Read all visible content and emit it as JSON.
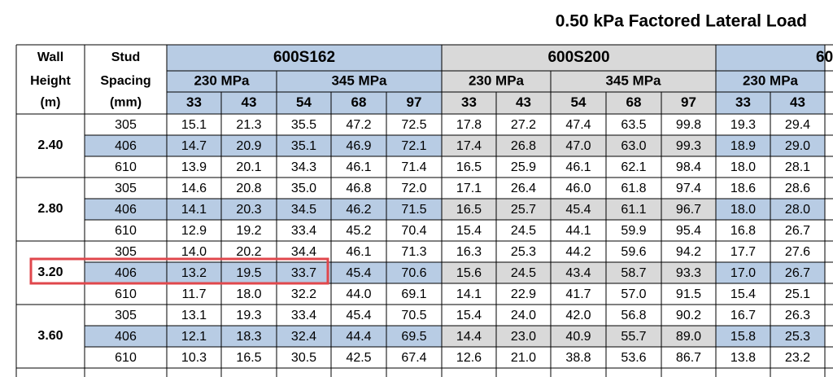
{
  "title": "0.50 kPa Factored Lateral Load",
  "header": {
    "wall": [
      "Wall",
      "Height",
      "(m)"
    ],
    "stud": [
      "Stud",
      "Spacing",
      "(mm)"
    ],
    "sections": [
      {
        "name": "600S162",
        "grades": [
          {
            "name": "230 MPa",
            "thicknesses": [
              "33",
              "43"
            ]
          },
          {
            "name": "345 MPa",
            "thicknesses": [
              "54",
              "68",
              "97"
            ]
          }
        ]
      },
      {
        "name": "600S200",
        "grades": [
          {
            "name": "230 MPa",
            "thicknesses": [
              "33",
              "43"
            ]
          },
          {
            "name": "345 MPa",
            "thicknesses": [
              "54",
              "68",
              "97"
            ]
          }
        ]
      },
      {
        "name": "60",
        "grades": [
          {
            "name": "230 MPa",
            "thicknesses": [
              "33",
              "43"
            ]
          }
        ]
      }
    ]
  },
  "groups": [
    {
      "height": "2.40",
      "rows": [
        {
          "spacing": "305",
          "values": [
            "15.1",
            "21.3",
            "35.5",
            "47.2",
            "72.5",
            "17.8",
            "27.2",
            "47.4",
            "63.5",
            "99.8",
            "19.3",
            "29.4"
          ]
        },
        {
          "spacing": "406",
          "values": [
            "14.7",
            "20.9",
            "35.1",
            "46.9",
            "72.1",
            "17.4",
            "26.8",
            "47.0",
            "63.0",
            "99.3",
            "18.9",
            "29.0"
          ]
        },
        {
          "spacing": "610",
          "values": [
            "13.9",
            "20.1",
            "34.3",
            "46.1",
            "71.4",
            "16.5",
            "25.9",
            "46.1",
            "62.1",
            "98.4",
            "18.0",
            "28.1"
          ]
        }
      ]
    },
    {
      "height": "2.80",
      "rows": [
        {
          "spacing": "305",
          "values": [
            "14.6",
            "20.8",
            "35.0",
            "46.8",
            "72.0",
            "17.1",
            "26.4",
            "46.0",
            "61.8",
            "97.4",
            "18.6",
            "28.6"
          ]
        },
        {
          "spacing": "406",
          "values": [
            "14.1",
            "20.3",
            "34.5",
            "46.2",
            "71.5",
            "16.5",
            "25.7",
            "45.4",
            "61.1",
            "96.7",
            "18.0",
            "28.0"
          ]
        },
        {
          "spacing": "610",
          "values": [
            "12.9",
            "19.2",
            "33.4",
            "45.2",
            "70.4",
            "15.4",
            "24.5",
            "44.1",
            "59.9",
            "95.4",
            "16.8",
            "26.7"
          ]
        }
      ]
    },
    {
      "height": "3.20",
      "rows": [
        {
          "spacing": "305",
          "values": [
            "14.0",
            "20.2",
            "34.4",
            "46.1",
            "71.3",
            "16.3",
            "25.3",
            "44.2",
            "59.6",
            "94.2",
            "17.7",
            "27.6"
          ]
        },
        {
          "spacing": "406",
          "values": [
            "13.2",
            "19.5",
            "33.7",
            "45.4",
            "70.6",
            "15.6",
            "24.5",
            "43.4",
            "58.7",
            "93.3",
            "17.0",
            "26.7"
          ]
        },
        {
          "spacing": "610",
          "values": [
            "11.7",
            "18.0",
            "32.2",
            "44.0",
            "69.1",
            "14.1",
            "22.9",
            "41.7",
            "57.0",
            "91.5",
            "15.4",
            "25.1"
          ]
        }
      ]
    },
    {
      "height": "3.60",
      "rows": [
        {
          "spacing": "305",
          "values": [
            "13.1",
            "19.3",
            "33.4",
            "45.4",
            "70.5",
            "15.4",
            "24.0",
            "42.0",
            "56.8",
            "90.2",
            "16.7",
            "26.3"
          ]
        },
        {
          "spacing": "406",
          "values": [
            "12.1",
            "18.3",
            "32.4",
            "44.4",
            "69.5",
            "14.4",
            "23.0",
            "40.9",
            "55.7",
            "89.0",
            "15.8",
            "25.3"
          ]
        },
        {
          "spacing": "610",
          "values": [
            "10.3",
            "16.5",
            "30.5",
            "42.5",
            "67.4",
            "12.6",
            "21.0",
            "38.8",
            "53.6",
            "86.7",
            "13.8",
            "23.2"
          ]
        }
      ]
    }
  ]
}
